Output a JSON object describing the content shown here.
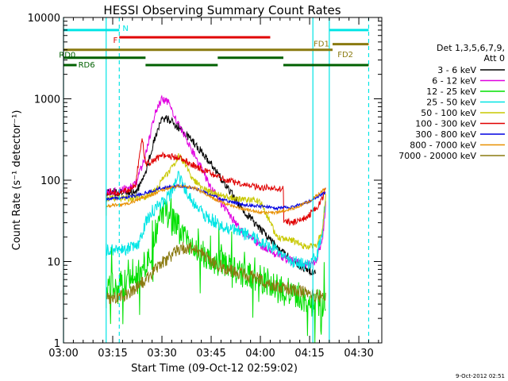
{
  "chart_data": {
    "type": "line",
    "title": "HESSI Observing Summary Count Rates",
    "xlabel": "Start Time (09-Oct-12 02:59:02)",
    "ylabel": "Count Rate (s⁻¹ detector⁻¹)",
    "y_scale": "log",
    "ylim": [
      1,
      10000
    ],
    "xlim_minutes": [
      0,
      97
    ],
    "x_ticks": [
      {
        "t": 0,
        "label": "03:00"
      },
      {
        "t": 15,
        "label": "03:15"
      },
      {
        "t": 30,
        "label": "03:30"
      },
      {
        "t": 45,
        "label": "03:45"
      },
      {
        "t": 60,
        "label": "04:00"
      },
      {
        "t": 75,
        "label": "04:15"
      },
      {
        "t": 90,
        "label": "04:30"
      }
    ],
    "y_ticks": [
      {
        "v": 1,
        "label": "1"
      },
      {
        "v": 10,
        "label": "10"
      },
      {
        "v": 100,
        "label": "100"
      },
      {
        "v": 1000,
        "label": "1000"
      },
      {
        "v": 10000,
        "label": "10000"
      }
    ],
    "legend": {
      "placement": "right",
      "header": [
        "Det 1,3,5,6,7,9,",
        "Att 0"
      ]
    },
    "timestamp": "9-Oct-2012 02:51",
    "time_markers": [
      {
        "t": 0,
        "style": "solid"
      },
      {
        "t": 13,
        "style": "solid"
      },
      {
        "t": 17,
        "style": "dashed"
      },
      {
        "t": 76,
        "style": "solid"
      },
      {
        "t": 81,
        "style": "solid"
      },
      {
        "t": 93,
        "style": "dashed"
      }
    ],
    "flag_bars": [
      {
        "label": "N",
        "color": "#00e5e5",
        "level": 7000,
        "segments": [
          [
            0,
            17
          ],
          [
            81,
            93
          ]
        ]
      },
      {
        "label": "F",
        "color": "#e00000",
        "level": 5700,
        "segments": [
          [
            17,
            63
          ]
        ]
      },
      {
        "label": "FD1",
        "color": "#8a7a10",
        "level": 4700,
        "segments": [
          [
            82,
            93
          ]
        ]
      },
      {
        "label": "FD2",
        "color": "#8a7a10",
        "level": 4000,
        "segments": [
          [
            0,
            82
          ]
        ]
      },
      {
        "label": "RD0",
        "color": "#006000",
        "level": 3200,
        "segments": [
          [
            0,
            25
          ],
          [
            47,
            67
          ]
        ]
      },
      {
        "label": "RD6",
        "color": "#006000",
        "level": 2600,
        "segments": [
          [
            0,
            4
          ],
          [
            25,
            47
          ],
          [
            67,
            93
          ]
        ]
      }
    ],
    "series": [
      {
        "name": "3 - 6 keV",
        "color": "#000000",
        "noise": 0.05,
        "sparse": false,
        "x": [
          13,
          18,
          22,
          25,
          28,
          30,
          32,
          35,
          40,
          45,
          50,
          55,
          60,
          65,
          70,
          74,
          77
        ],
        "y": [
          70,
          70,
          70,
          120,
          350,
          580,
          560,
          450,
          280,
          160,
          80,
          42,
          25,
          15,
          10,
          8,
          7
        ]
      },
      {
        "name": "6 - 12 keV",
        "color": "#e000e0",
        "noise": 0.05,
        "sparse": false,
        "x": [
          13,
          18,
          22,
          25,
          28,
          30,
          32,
          35,
          40,
          45,
          50,
          55,
          60,
          65,
          70,
          74,
          77,
          79,
          80
        ],
        "y": [
          70,
          75,
          90,
          200,
          700,
          1000,
          900,
          500,
          200,
          80,
          40,
          22,
          16,
          12,
          10,
          9,
          10,
          20,
          55
        ]
      },
      {
        "name": "12 - 25 keV",
        "color": "#00e000",
        "noise": 0.18,
        "sparse": true,
        "x": [
          13,
          17,
          20,
          23,
          26,
          28,
          30,
          33,
          36,
          40,
          45,
          50,
          55,
          60,
          65,
          70,
          74,
          77,
          80
        ],
        "y": [
          5,
          5,
          5.5,
          6.5,
          11,
          25,
          42,
          35,
          22,
          15,
          11,
          9,
          7,
          6,
          5,
          4,
          3.5,
          3,
          3
        ]
      },
      {
        "name": "25 - 50 keV",
        "color": "#00e5e5",
        "noise": 0.08,
        "sparse": false,
        "x": [
          13,
          18,
          22,
          24,
          25,
          27,
          30,
          33,
          35,
          37,
          39,
          42,
          45,
          50,
          55,
          60,
          65,
          70,
          74,
          77,
          79,
          80
        ],
        "y": [
          14,
          14,
          15,
          20,
          30,
          42,
          52,
          70,
          110,
          80,
          55,
          40,
          33,
          26,
          22,
          18,
          14,
          10,
          9,
          11,
          25,
          70
        ]
      },
      {
        "name": "50 - 100 keV",
        "color": "#c8c800",
        "noise": 0.04,
        "sparse": false,
        "x": [
          13,
          20,
          25,
          28,
          30,
          33,
          35,
          37,
          39,
          42,
          45,
          50,
          55,
          60,
          65,
          70,
          74,
          77,
          79,
          80
        ],
        "y": [
          60,
          60,
          62,
          75,
          100,
          140,
          200,
          160,
          110,
          80,
          70,
          62,
          58,
          55,
          20,
          18,
          15,
          16,
          25,
          70
        ]
      },
      {
        "name": "100 - 300 keV",
        "color": "#e00000",
        "noise": 0.04,
        "sparse": false,
        "x": [
          13,
          16,
          20,
          22,
          23,
          24,
          25,
          27,
          30,
          35,
          40,
          45,
          50,
          55,
          60,
          67,
          67.1,
          70,
          74,
          77,
          79,
          80
        ],
        "y": [
          70,
          70,
          75,
          90,
          180,
          320,
          160,
          170,
          200,
          190,
          150,
          120,
          100,
          88,
          82,
          78,
          32,
          30,
          35,
          45,
          60,
          82
        ]
      },
      {
        "name": "300 - 800 keV",
        "color": "#0000e0",
        "noise": 0.02,
        "sparse": false,
        "x": [
          13,
          20,
          25,
          30,
          35,
          40,
          45,
          50,
          55,
          60,
          65,
          70,
          75,
          80
        ],
        "y": [
          58,
          62,
          70,
          80,
          85,
          80,
          65,
          55,
          50,
          48,
          45,
          47,
          55,
          72
        ]
      },
      {
        "name": "800 - 7000 keV",
        "color": "#e89000",
        "noise": 0.02,
        "sparse": false,
        "x": [
          13,
          20,
          25,
          30,
          35,
          40,
          45,
          50,
          55,
          60,
          65,
          70,
          75,
          80
        ],
        "y": [
          48,
          52,
          62,
          75,
          85,
          80,
          62,
          50,
          44,
          40,
          40,
          45,
          55,
          80
        ]
      },
      {
        "name": "7000 - 20000 keV",
        "color": "#8a7a10",
        "noise": 0.08,
        "sparse": false,
        "x": [
          13,
          17,
          20,
          22,
          25,
          28,
          30,
          33,
          35,
          38,
          40,
          43,
          45,
          50,
          55,
          60,
          65,
          70,
          75,
          80
        ],
        "y": [
          3.5,
          3.8,
          4,
          4.8,
          6,
          8,
          9.5,
          12,
          14,
          15,
          14,
          12,
          10,
          8,
          7,
          6,
          5,
          4.5,
          4,
          3.5
        ]
      }
    ]
  }
}
